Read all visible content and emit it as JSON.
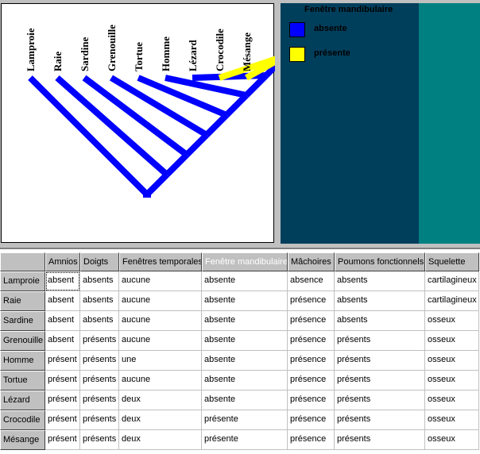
{
  "tree": {
    "taxa": [
      "Lamproie",
      "Raie",
      "Sardine",
      "Grenouille",
      "Tortue",
      "Homme",
      "Lézard",
      "Crocodile",
      "Mésange"
    ],
    "branch_colors": [
      "#0000ff",
      "#0000ff",
      "#0000ff",
      "#0000ff",
      "#0000ff",
      "#0000ff",
      "#0000ff",
      "#ffff00",
      "#ffff00"
    ],
    "internal_colors": [
      "#0000ff",
      "#0000ff",
      "#0000ff",
      "#0000ff",
      "#0000ff",
      "#0000ff",
      "#0000ff",
      "#ffff00"
    ]
  },
  "legend": {
    "title": "Fenêtre mandibulaire",
    "items": [
      {
        "label": "absente",
        "color": "#0000ff"
      },
      {
        "label": "présente",
        "color": "#ffff00"
      }
    ]
  },
  "table": {
    "corner": "",
    "selected_column": 3,
    "columns": [
      "Amnios",
      "Doigts",
      "Fenêtres temporales",
      "Fenêtre mandibulaire",
      "Mâchoires",
      "Poumons fonctionnels",
      "Squelette"
    ],
    "rows": [
      {
        "name": "Lamproie",
        "values": [
          "absent",
          "absents",
          "aucune",
          "absente",
          "absence",
          "absents",
          "cartilagineux"
        ]
      },
      {
        "name": "Raie",
        "values": [
          "absent",
          "absents",
          "aucune",
          "absente",
          "présence",
          "absents",
          "cartilagineux"
        ]
      },
      {
        "name": "Sardine",
        "values": [
          "absent",
          "absents",
          "aucune",
          "absente",
          "présence",
          "absents",
          "osseux"
        ]
      },
      {
        "name": "Grenouille",
        "values": [
          "absent",
          "présents",
          "aucune",
          "absente",
          "présence",
          "présents",
          "osseux"
        ]
      },
      {
        "name": "Homme",
        "values": [
          "présent",
          "présents",
          "une",
          "absente",
          "présence",
          "présents",
          "osseux"
        ]
      },
      {
        "name": "Tortue",
        "values": [
          "présent",
          "présents",
          "aucune",
          "absente",
          "présence",
          "présents",
          "osseux"
        ]
      },
      {
        "name": "Lézard",
        "values": [
          "présent",
          "présents",
          "deux",
          "absente",
          "présence",
          "présents",
          "osseux"
        ]
      },
      {
        "name": "Crocodile",
        "values": [
          "présent",
          "présents",
          "deux",
          "présente",
          "présence",
          "présents",
          "osseux"
        ]
      },
      {
        "name": "Mésange",
        "values": [
          "présent",
          "présents",
          "deux",
          "présente",
          "présence",
          "présents",
          "osseux"
        ]
      }
    ]
  }
}
